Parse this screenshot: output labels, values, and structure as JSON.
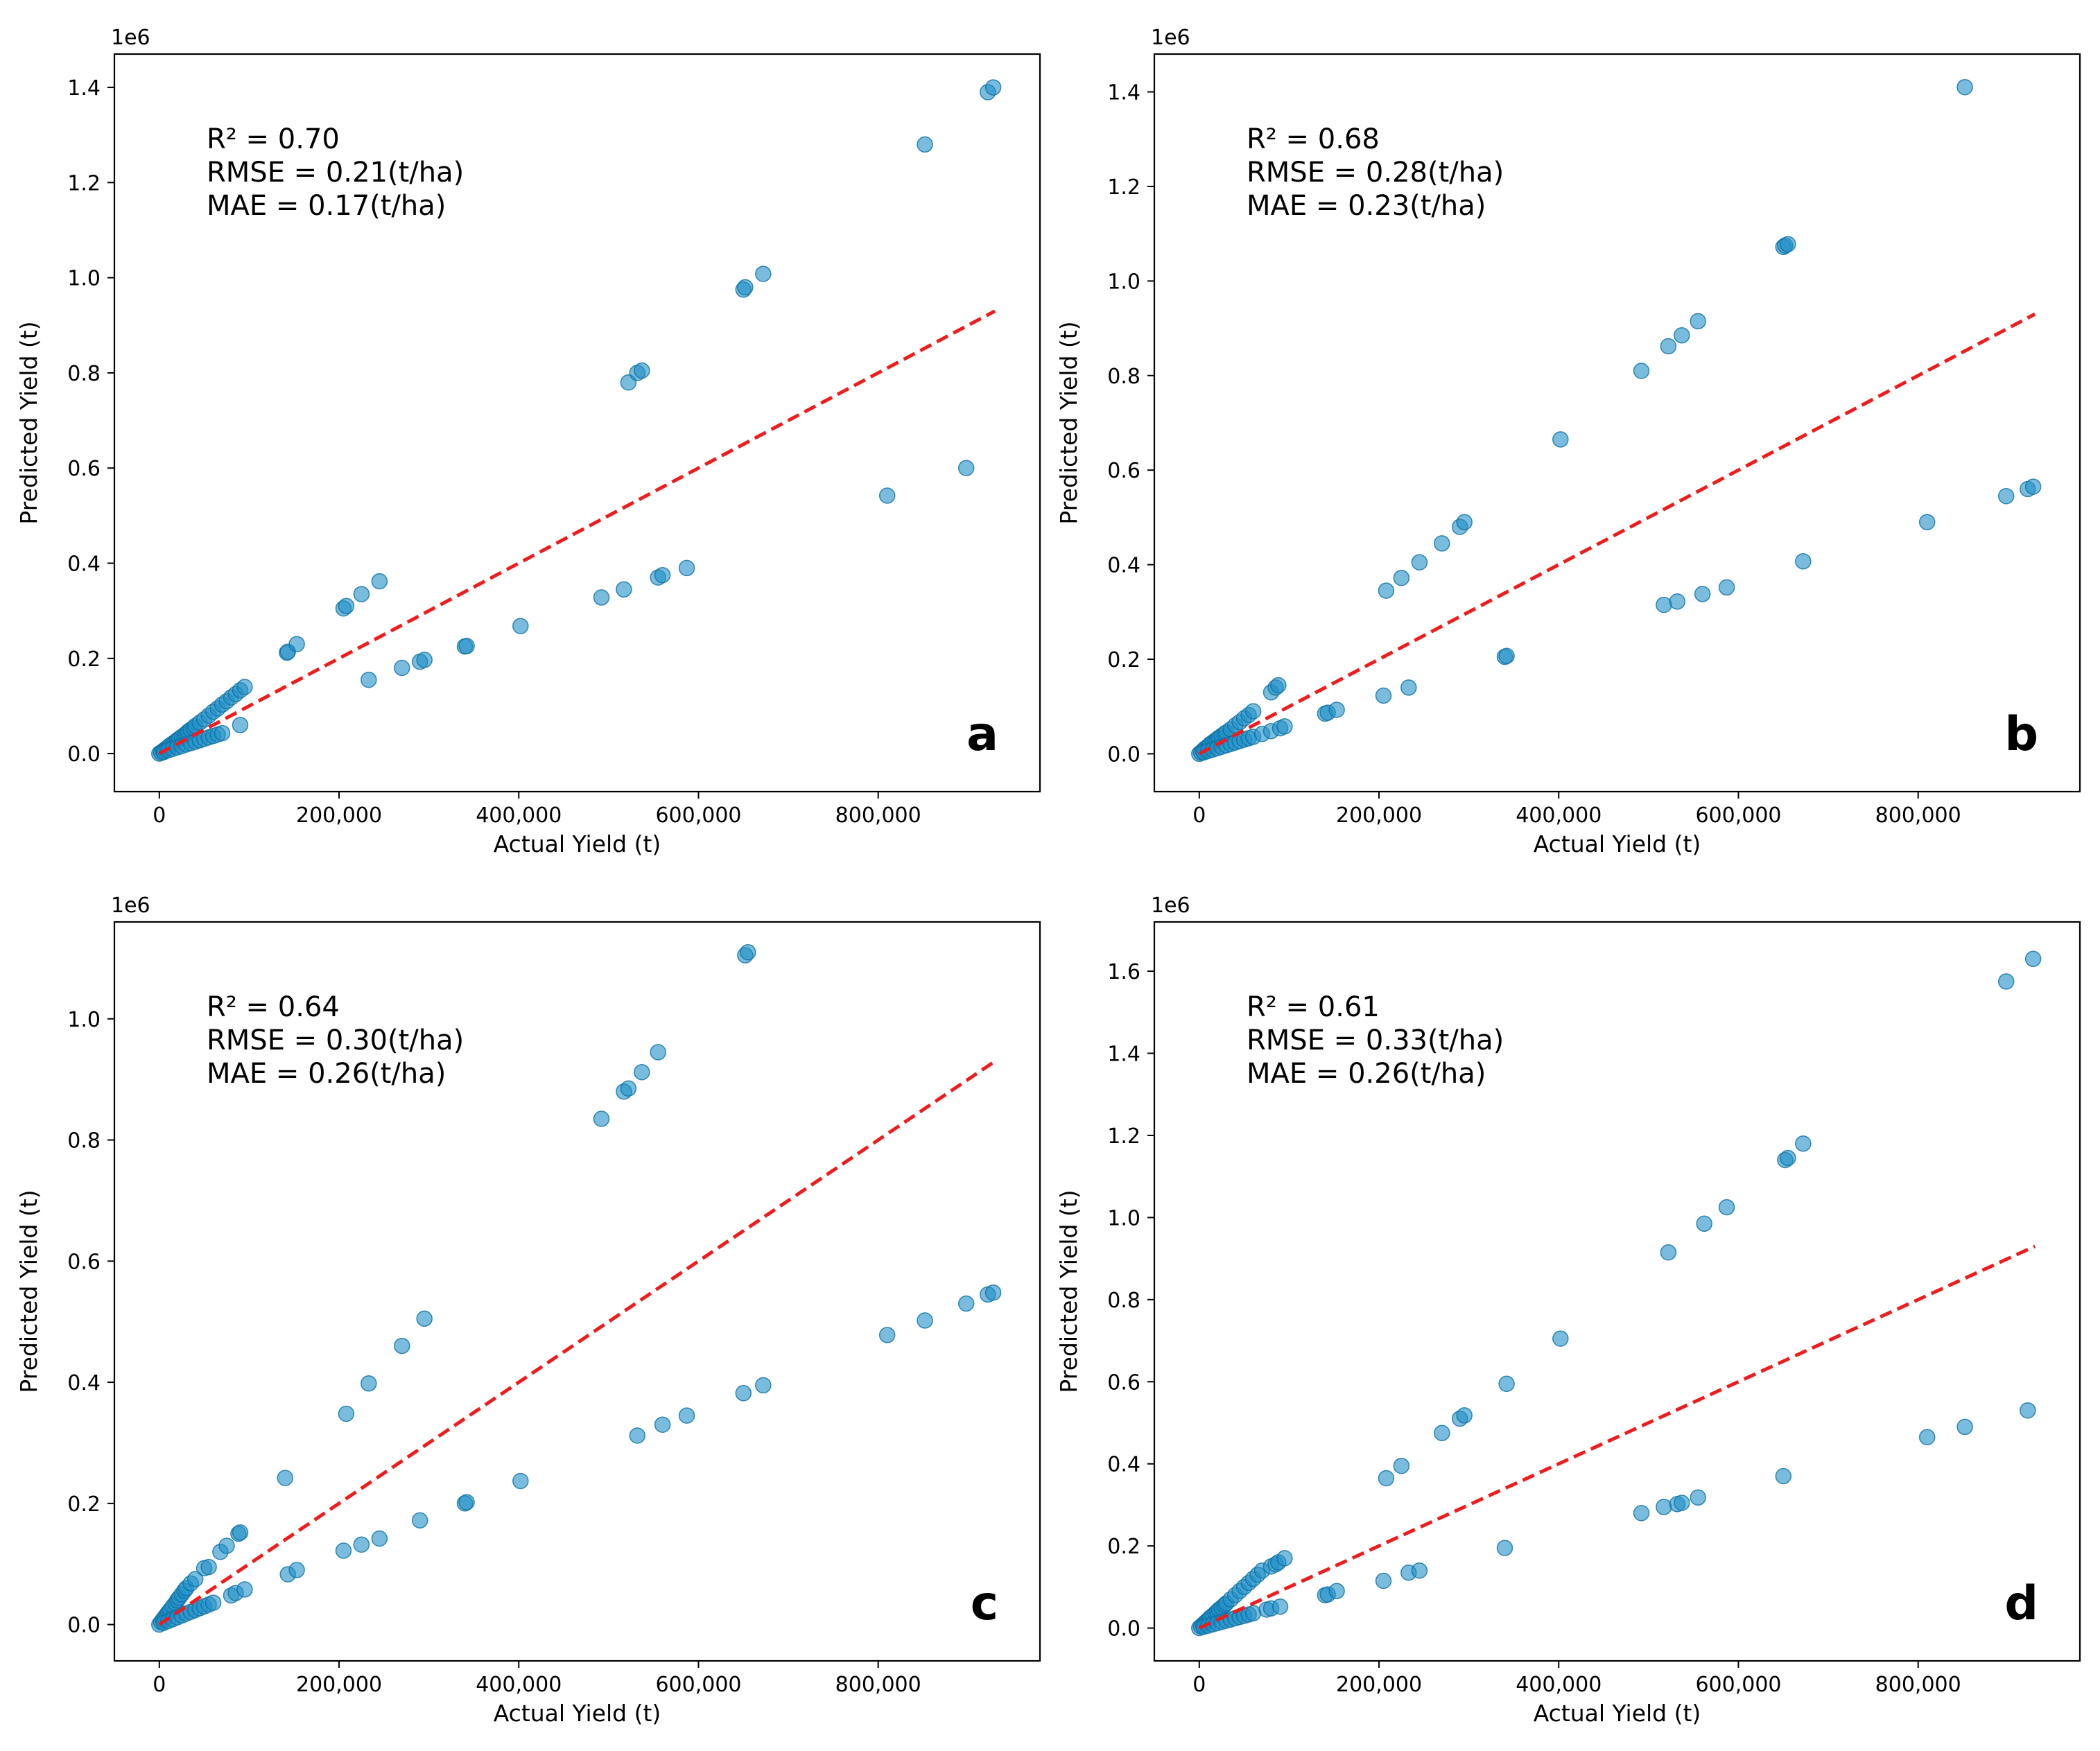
{
  "figure": {
    "accent_point_color": "#1f8fc6",
    "point_edge_color": "#0b6fa4",
    "fit_line_color": "#ee1c1c"
  },
  "chart_data": [
    {
      "type": "scatter",
      "panel_label": "a",
      "xlabel": "Actual Yield (t)",
      "ylabel": "Predicted Yield (t)",
      "y_offset_label": "1e6",
      "xlim": [
        -50000,
        980000
      ],
      "ylim": [
        -0.08,
        1.47
      ],
      "xticks": [
        0,
        200000,
        400000,
        600000,
        800000
      ],
      "xtick_labels": [
        "0",
        "200,000",
        "400,000",
        "600,000",
        "800,000"
      ],
      "yticks": [
        0,
        0.2,
        0.4,
        0.6,
        0.8,
        1.0,
        1.2,
        1.4
      ],
      "ytick_labels": [
        "0.0",
        "0.2",
        "0.4",
        "0.6",
        "0.8",
        "1.0",
        "1.2",
        "1.4"
      ],
      "stats": [
        "R² = 0.70",
        "RMSE = 0.21(t/ha)",
        "MAE = 0.17(t/ha)"
      ],
      "reference_line": {
        "x": [
          0,
          930000
        ],
        "y": [
          0,
          0.93
        ]
      },
      "points": {
        "x": [
          0,
          2000,
          4000,
          6000,
          8000,
          10000,
          12000,
          15000,
          18000,
          20000,
          22000,
          25000,
          28000,
          30000,
          32000,
          35000,
          38000,
          40000,
          45000,
          50000,
          55000,
          60000,
          65000,
          70000,
          75000,
          80000,
          85000,
          90000,
          95000,
          5000,
          10000,
          15000,
          20000,
          25000,
          30000,
          35000,
          40000,
          45000,
          50000,
          55000,
          60000,
          65000,
          70000,
          90000,
          142000,
          143000,
          153000,
          205000,
          208000,
          225000,
          245000,
          233000,
          270000,
          290000,
          295000,
          340000,
          342000,
          402000,
          492000,
          517000,
          522000,
          532000,
          537000,
          555000,
          560000,
          587000,
          650000,
          652000,
          672000,
          810000,
          852000,
          898000,
          922000,
          928000
        ],
        "y": [
          0,
          0.002,
          0.005,
          0.008,
          0.011,
          0.014,
          0.017,
          0.021,
          0.025,
          0.028,
          0.031,
          0.035,
          0.039,
          0.042,
          0.046,
          0.05,
          0.054,
          0.058,
          0.065,
          0.072,
          0.08,
          0.088,
          0.095,
          0.103,
          0.11,
          0.118,
          0.125,
          0.133,
          0.14,
          0.003,
          0.007,
          0.01,
          0.013,
          0.016,
          0.019,
          0.022,
          0.025,
          0.028,
          0.031,
          0.034,
          0.037,
          0.04,
          0.043,
          0.06,
          0.212,
          0.214,
          0.23,
          0.305,
          0.31,
          0.335,
          0.362,
          0.155,
          0.18,
          0.193,
          0.197,
          0.225,
          0.226,
          0.268,
          0.328,
          0.345,
          0.78,
          0.8,
          0.805,
          0.37,
          0.375,
          0.39,
          0.975,
          0.98,
          1.008,
          0.542,
          1.28,
          0.6,
          1.39,
          1.4
        ]
      }
    },
    {
      "type": "scatter",
      "panel_label": "b",
      "xlabel": "Actual Yield (t)",
      "ylabel": "Predicted Yield (t)",
      "y_offset_label": "1e6",
      "xlim": [
        -50000,
        980000
      ],
      "ylim": [
        -0.08,
        1.48
      ],
      "xticks": [
        0,
        200000,
        400000,
        600000,
        800000
      ],
      "xtick_labels": [
        "0",
        "200,000",
        "400,000",
        "600,000",
        "800,000"
      ],
      "yticks": [
        0,
        0.2,
        0.4,
        0.6,
        0.8,
        1.0,
        1.2,
        1.4
      ],
      "ytick_labels": [
        "0.0",
        "0.2",
        "0.4",
        "0.6",
        "0.8",
        "1.0",
        "1.2",
        "1.4"
      ],
      "stats": [
        "R² = 0.68",
        "RMSE = 0.28(t/ha)",
        "MAE = 0.23(t/ha)"
      ],
      "reference_line": {
        "x": [
          0,
          930000
        ],
        "y": [
          0,
          0.93
        ]
      },
      "points": {
        "x": [
          0,
          2000,
          4000,
          6000,
          8000,
          10000,
          12000,
          15000,
          18000,
          20000,
          22000,
          25000,
          28000,
          30000,
          35000,
          40000,
          45000,
          50000,
          55000,
          60000,
          80000,
          85000,
          88000,
          5000,
          10000,
          15000,
          20000,
          25000,
          30000,
          35000,
          40000,
          45000,
          50000,
          55000,
          60000,
          70000,
          80000,
          90000,
          95000,
          140000,
          143000,
          153000,
          205000,
          208000,
          225000,
          233000,
          245000,
          270000,
          290000,
          295000,
          340000,
          342000,
          402000,
          492000,
          517000,
          522000,
          532000,
          537000,
          555000,
          560000,
          587000,
          650000,
          652000,
          655000,
          672000,
          810000,
          852000,
          898000,
          922000,
          928000
        ],
        "y": [
          0,
          0.003,
          0.006,
          0.01,
          0.013,
          0.016,
          0.02,
          0.024,
          0.028,
          0.031,
          0.034,
          0.038,
          0.042,
          0.045,
          0.052,
          0.06,
          0.067,
          0.075,
          0.082,
          0.09,
          0.13,
          0.14,
          0.145,
          0.003,
          0.006,
          0.009,
          0.012,
          0.015,
          0.018,
          0.021,
          0.024,
          0.027,
          0.03,
          0.033,
          0.036,
          0.042,
          0.048,
          0.054,
          0.058,
          0.085,
          0.087,
          0.093,
          0.123,
          0.345,
          0.372,
          0.14,
          0.405,
          0.445,
          0.48,
          0.49,
          0.205,
          0.207,
          0.665,
          0.81,
          0.315,
          0.862,
          0.322,
          0.885,
          0.915,
          0.338,
          0.352,
          1.072,
          1.075,
          1.078,
          0.407,
          0.49,
          1.41,
          0.545,
          0.56,
          0.565
        ]
      }
    },
    {
      "type": "scatter",
      "panel_label": "c",
      "xlabel": "Actual Yield (t)",
      "ylabel": "Predicted Yield (t)",
      "y_offset_label": "1e6",
      "xlim": [
        -50000,
        980000
      ],
      "ylim": [
        -0.06,
        1.16
      ],
      "xticks": [
        0,
        200000,
        400000,
        600000,
        800000
      ],
      "xtick_labels": [
        "0",
        "200,000",
        "400,000",
        "600,000",
        "800,000"
      ],
      "yticks": [
        0,
        0.2,
        0.4,
        0.6,
        0.8,
        1.0
      ],
      "ytick_labels": [
        "0.0",
        "0.2",
        "0.4",
        "0.6",
        "0.8",
        "1.0"
      ],
      "stats": [
        "R² = 0.64",
        "RMSE = 0.30(t/ha)",
        "MAE = 0.26(t/ha)"
      ],
      "reference_line": {
        "x": [
          0,
          930000
        ],
        "y": [
          0,
          0.93
        ]
      },
      "points": {
        "x": [
          0,
          2000,
          4000,
          6000,
          8000,
          10000,
          12000,
          15000,
          18000,
          20000,
          22000,
          25000,
          28000,
          30000,
          35000,
          40000,
          50000,
          55000,
          68000,
          75000,
          88000,
          90000,
          5000,
          10000,
          15000,
          20000,
          25000,
          30000,
          35000,
          40000,
          45000,
          50000,
          55000,
          60000,
          80000,
          85000,
          95000,
          140000,
          143000,
          153000,
          205000,
          208000,
          225000,
          233000,
          245000,
          270000,
          290000,
          295000,
          340000,
          342000,
          402000,
          492000,
          517000,
          522000,
          532000,
          537000,
          555000,
          560000,
          587000,
          650000,
          652000,
          655000,
          672000,
          810000,
          852000,
          898000,
          922000,
          928000
        ],
        "y": [
          0,
          0.004,
          0.008,
          0.012,
          0.016,
          0.02,
          0.024,
          0.03,
          0.035,
          0.04,
          0.044,
          0.05,
          0.056,
          0.06,
          0.068,
          0.075,
          0.093,
          0.095,
          0.12,
          0.13,
          0.15,
          0.152,
          0.003,
          0.006,
          0.009,
          0.012,
          0.015,
          0.018,
          0.021,
          0.024,
          0.027,
          0.03,
          0.033,
          0.036,
          0.048,
          0.052,
          0.058,
          0.242,
          0.083,
          0.09,
          0.122,
          0.348,
          0.132,
          0.398,
          0.142,
          0.46,
          0.172,
          0.505,
          0.2,
          0.202,
          0.237,
          0.835,
          0.88,
          0.885,
          0.312,
          0.912,
          0.945,
          0.33,
          0.345,
          0.382,
          1.105,
          1.11,
          0.395,
          0.478,
          0.502,
          0.53,
          0.545,
          0.548
        ]
      }
    },
    {
      "type": "scatter",
      "panel_label": "d",
      "xlabel": "Actual Yield (t)",
      "ylabel": "Predicted Yield (t)",
      "y_offset_label": "1e6",
      "xlim": [
        -50000,
        980000
      ],
      "ylim": [
        -0.08,
        1.72
      ],
      "xticks": [
        0,
        200000,
        400000,
        600000,
        800000
      ],
      "xtick_labels": [
        "0",
        "200,000",
        "400,000",
        "600,000",
        "800,000"
      ],
      "yticks": [
        0,
        0.2,
        0.4,
        0.6,
        0.8,
        1.0,
        1.2,
        1.4,
        1.6
      ],
      "ytick_labels": [
        "0.0",
        "0.2",
        "0.4",
        "0.6",
        "0.8",
        "1.0",
        "1.2",
        "1.4",
        "1.6"
      ],
      "stats": [
        "R² = 0.61",
        "RMSE = 0.33(t/ha)",
        "MAE = 0.26(t/ha)"
      ],
      "reference_line": {
        "x": [
          0,
          930000
        ],
        "y": [
          0,
          0.93
        ]
      },
      "points": {
        "x": [
          0,
          2000,
          4000,
          6000,
          8000,
          10000,
          12000,
          15000,
          18000,
          20000,
          22000,
          25000,
          28000,
          30000,
          35000,
          40000,
          45000,
          50000,
          55000,
          60000,
          65000,
          70000,
          80000,
          85000,
          88000,
          95000,
          5000,
          10000,
          15000,
          20000,
          25000,
          30000,
          35000,
          40000,
          45000,
          50000,
          55000,
          60000,
          75000,
          80000,
          90000,
          140000,
          143000,
          153000,
          205000,
          208000,
          225000,
          233000,
          245000,
          270000,
          290000,
          295000,
          340000,
          342000,
          402000,
          492000,
          517000,
          522000,
          532000,
          537000,
          555000,
          562000,
          587000,
          650000,
          652000,
          655000,
          672000,
          810000,
          852000,
          898000,
          922000,
          928000
        ],
        "y": [
          0,
          0.004,
          0.008,
          0.012,
          0.016,
          0.02,
          0.025,
          0.03,
          0.036,
          0.04,
          0.045,
          0.05,
          0.056,
          0.06,
          0.07,
          0.08,
          0.09,
          0.1,
          0.11,
          0.12,
          0.13,
          0.14,
          0.15,
          0.155,
          0.16,
          0.17,
          0.003,
          0.006,
          0.009,
          0.012,
          0.015,
          0.018,
          0.021,
          0.024,
          0.027,
          0.03,
          0.033,
          0.036,
          0.045,
          0.048,
          0.052,
          0.08,
          0.082,
          0.09,
          0.115,
          0.365,
          0.395,
          0.135,
          0.14,
          0.475,
          0.51,
          0.518,
          0.195,
          0.595,
          0.705,
          0.28,
          0.295,
          0.915,
          0.302,
          0.305,
          0.318,
          0.985,
          1.025,
          0.37,
          1.14,
          1.145,
          1.18,
          0.465,
          0.49,
          1.575,
          0.53,
          1.63
        ]
      }
    }
  ]
}
